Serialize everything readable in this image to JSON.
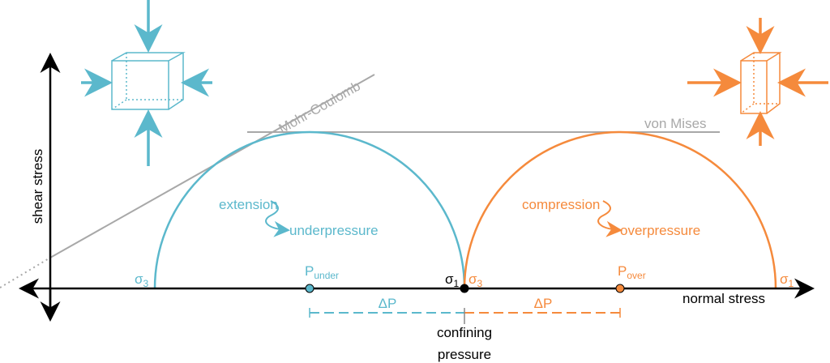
{
  "axes": {
    "y_label": "shear stress",
    "x_label": "normal stress"
  },
  "criteria": {
    "mohr_coulomb": "Mohr-Coulomb",
    "von_mises": "von Mises"
  },
  "extension": {
    "labels": [
      "extension",
      "underpressure"
    ],
    "sigma_min": {
      "symbol": "σ",
      "sub": "3"
    },
    "pressure": {
      "symbol": "P",
      "sub": "under"
    },
    "sigma_max": {
      "symbol": "σ",
      "sub": "1"
    },
    "delta": "ΔP"
  },
  "compression": {
    "labels": [
      "compression",
      "overpressure"
    ],
    "sigma_min": {
      "symbol": "σ",
      "sub": "3"
    },
    "pressure": {
      "symbol": "P",
      "sub": "over"
    },
    "sigma_max": {
      "symbol": "σ",
      "sub": "1"
    },
    "delta": "ΔP"
  },
  "confining_pressure": [
    "confining",
    "pressure"
  ]
}
